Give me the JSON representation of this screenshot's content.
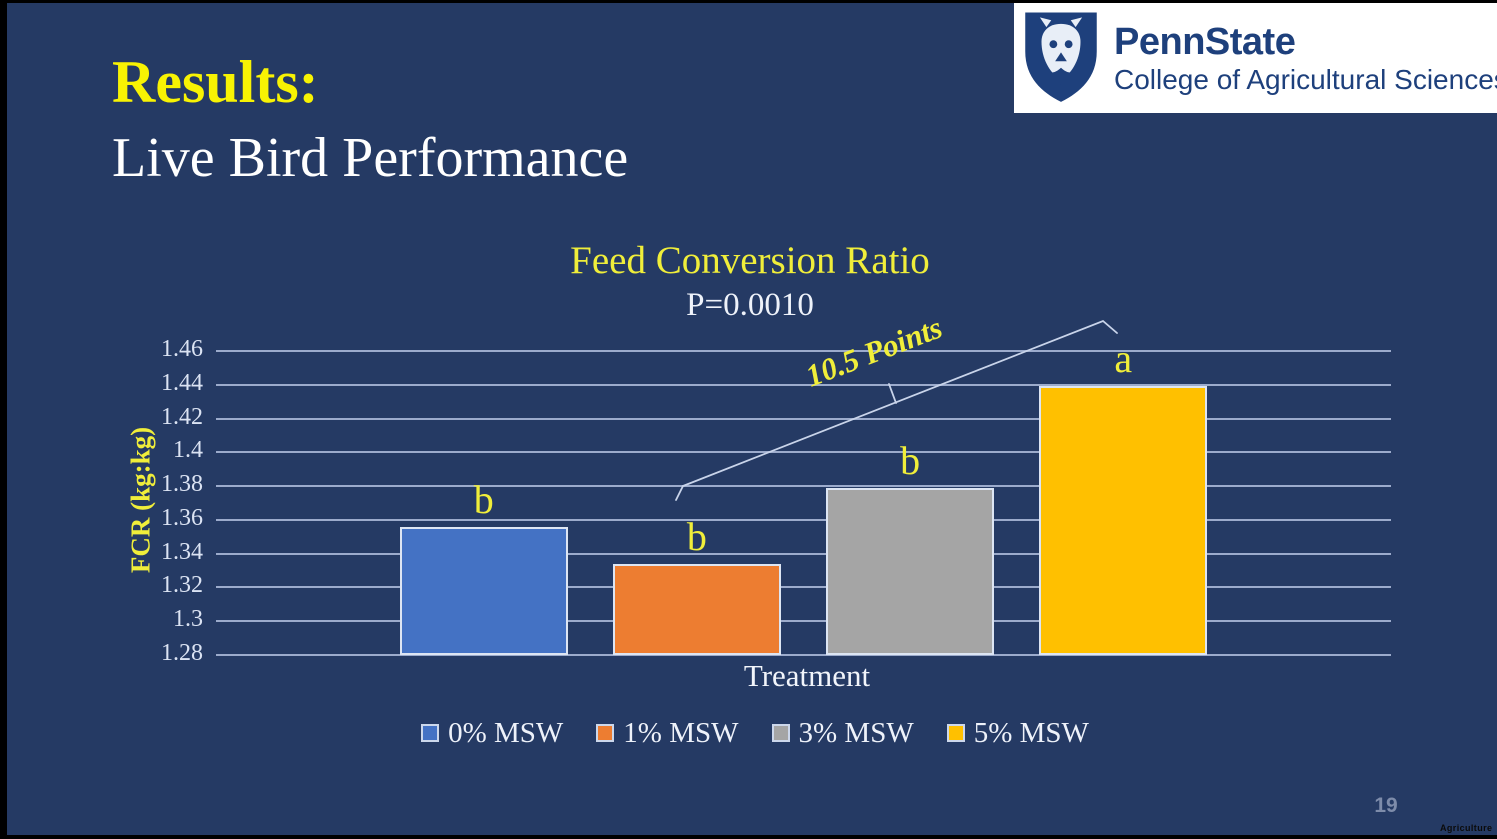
{
  "slide": {
    "background_color": "#253a64",
    "accent_yellow": "#f0ee3a",
    "title_line1": "Results:",
    "title_line2": "Live Bird Performance",
    "page_number": "19",
    "watermark": "Agriculture"
  },
  "logo": {
    "brand": "PennState",
    "subtitle": "College of Agricultural Sciences",
    "navy": "#1e407c"
  },
  "chart_data": {
    "type": "bar",
    "title": "Feed Conversion Ratio",
    "subtitle": "P=0.0010",
    "xlabel": "Treatment",
    "ylabel": "FCR (kg:kg)",
    "ylim": [
      1.28,
      1.46
    ],
    "yticks": [
      "1.46",
      "1.44",
      "1.42",
      "1.4",
      "1.38",
      "1.36",
      "1.34",
      "1.32",
      "1.3",
      "1.28"
    ],
    "categories": [
      "0% MSW",
      "1% MSW",
      "3% MSW",
      "5% MSW"
    ],
    "values": [
      1.356,
      1.334,
      1.379,
      1.439
    ],
    "bar_colors": [
      "#4472c4",
      "#ed7d31",
      "#a5a5a5",
      "#ffc000"
    ],
    "significance_letters": [
      "b",
      "b",
      "b",
      "a"
    ],
    "annotation": "10.5 Points",
    "legend": [
      "0% MSW",
      "1% MSW",
      "3% MSW",
      "5% MSW"
    ],
    "legend_position": "bottom",
    "grid": true
  }
}
